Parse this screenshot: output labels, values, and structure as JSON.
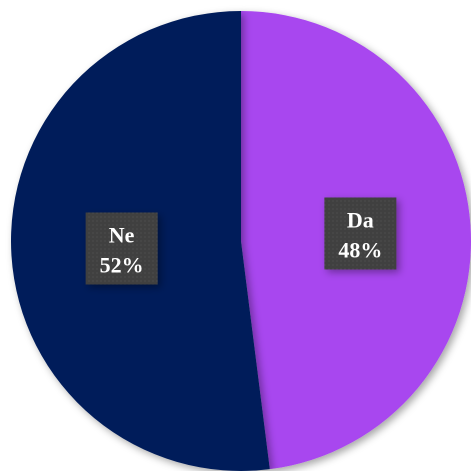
{
  "chart_data": {
    "type": "pie",
    "slices": [
      {
        "label": "Da",
        "value": 48,
        "value_label": "48%",
        "color": "#a846ef"
      },
      {
        "label": "Ne",
        "value": 52,
        "value_label": "52%",
        "color": "#001e5a"
      }
    ],
    "start_angle_deg": 0,
    "direction": "clockwise",
    "title": "",
    "legend": "none",
    "label_box_color": "#404040"
  }
}
